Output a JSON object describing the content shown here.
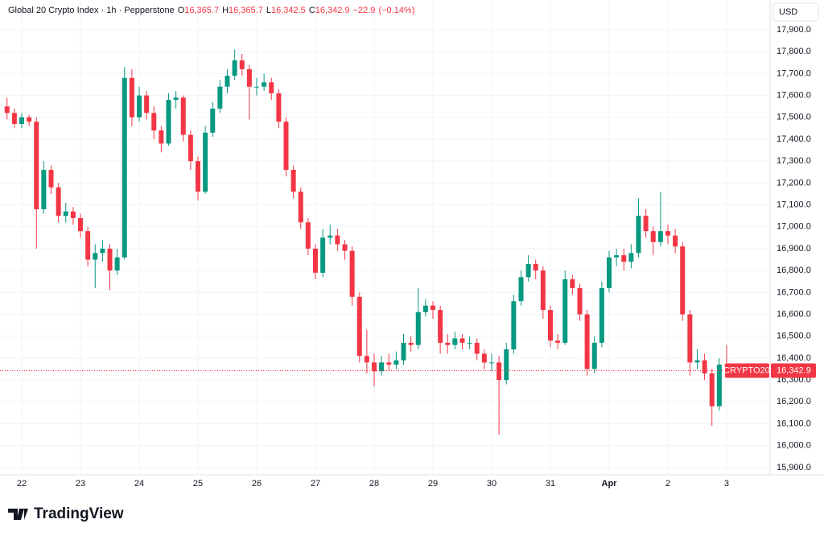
{
  "chart_data": {
    "type": "candlestick",
    "title": "Global 20 Crypto Index · 1h · Pepperstone",
    "last_bar": [
      {
        "key": "O",
        "value": 16365.7,
        "label": "16,365.7"
      },
      {
        "key": "H",
        "value": 16365.7,
        "label": "16,365.7"
      },
      {
        "key": "L",
        "value": 16342.5,
        "label": "16,342.5"
      },
      {
        "key": "C",
        "value": 16342.9,
        "label": "16,342.9"
      }
    ],
    "change": {
      "value": -22.9,
      "label": "−22.9"
    },
    "change_pct": {
      "value": -0.14,
      "label": "(−0.14%)"
    },
    "currency": "USD",
    "symbol": "CRYPTO20",
    "last_price": {
      "value": 16342.9,
      "label": "16,342.9"
    },
    "brand": "TradingView",
    "up_color": "#089981",
    "down_color": "#f23645",
    "grid": true,
    "xlim": [
      -0.37,
      12.74
    ],
    "ylim": [
      15874,
      18036
    ],
    "xticks": [
      {
        "value": 0,
        "label": "22"
      },
      {
        "value": 1,
        "label": "23"
      },
      {
        "value": 2,
        "label": "24"
      },
      {
        "value": 3,
        "label": "25"
      },
      {
        "value": 4,
        "label": "26"
      },
      {
        "value": 5,
        "label": "27"
      },
      {
        "value": 6,
        "label": "28"
      },
      {
        "value": 7,
        "label": "29"
      },
      {
        "value": 8,
        "label": "30"
      },
      {
        "value": 9,
        "label": "31"
      },
      {
        "value": 10,
        "label": "Apr"
      },
      {
        "value": 11,
        "label": "2"
      },
      {
        "value": 12,
        "label": "3"
      }
    ],
    "yticks": [
      {
        "value": 15900,
        "label": "15,900.0"
      },
      {
        "value": 16000,
        "label": "16,000.0"
      },
      {
        "value": 16100,
        "label": "16,100.0"
      },
      {
        "value": 16200,
        "label": "16,200.0"
      },
      {
        "value": 16300,
        "label": "16,300.0"
      },
      {
        "value": 16400,
        "label": "16,400.0"
      },
      {
        "value": 16500,
        "label": "16,500.0"
      },
      {
        "value": 16600,
        "label": "16,600.0"
      },
      {
        "value": 16700,
        "label": "16,700.0"
      },
      {
        "value": 16800,
        "label": "16,800.0"
      },
      {
        "value": 16900,
        "label": "16,900.0"
      },
      {
        "value": 17000,
        "label": "17,000.0"
      },
      {
        "value": 17100,
        "label": "17,100.0"
      },
      {
        "value": 17200,
        "label": "17,200.0"
      },
      {
        "value": 17300,
        "label": "17,300.0"
      },
      {
        "value": 17400,
        "label": "17,400.0"
      },
      {
        "value": 17500,
        "label": "17,500.0"
      },
      {
        "value": 17600,
        "label": "17,600.0"
      },
      {
        "value": 17700,
        "label": "17,700.0"
      },
      {
        "value": 17800,
        "label": "17,800.0"
      },
      {
        "value": 17900,
        "label": "17,900.0"
      }
    ],
    "x": [
      -0.25,
      -0.125,
      0,
      0.125,
      0.25,
      0.375,
      0.5,
      0.625,
      0.75,
      0.875,
      1,
      1.125,
      1.25,
      1.375,
      1.5,
      1.625,
      1.75,
      1.875,
      2,
      2.125,
      2.25,
      2.375,
      2.5,
      2.625,
      2.75,
      2.875,
      3,
      3.125,
      3.25,
      3.375,
      3.5,
      3.625,
      3.75,
      3.875,
      4,
      4.125,
      4.25,
      4.375,
      4.5,
      4.625,
      4.75,
      4.875,
      5,
      5.125,
      5.25,
      5.375,
      5.5,
      5.625,
      5.75,
      5.875,
      6,
      6.125,
      6.25,
      6.375,
      6.5,
      6.625,
      6.75,
      6.875,
      7,
      7.125,
      7.25,
      7.375,
      7.5,
      7.625,
      7.75,
      7.875,
      8,
      8.125,
      8.25,
      8.375,
      8.5,
      8.625,
      8.75,
      8.875,
      9,
      9.125,
      9.25,
      9.375,
      9.5,
      9.625,
      9.75,
      9.875,
      10,
      10.125,
      10.25,
      10.375,
      10.5,
      10.625,
      10.75,
      10.875,
      11,
      11.125,
      11.25,
      11.375,
      11.5,
      11.625,
      11.75,
      11.875,
      12,
      12.125
    ],
    "open": [
      17550,
      17520,
      17470,
      17500,
      17480,
      17080,
      17260,
      17180,
      17050,
      17070,
      17040,
      16980,
      16850,
      16880,
      16900,
      16800,
      16860,
      17680,
      17500,
      17600,
      17520,
      17440,
      17380,
      17580,
      17590,
      17420,
      17300,
      17160,
      17430,
      17540,
      17640,
      17690,
      17760,
      17720,
      17640,
      17640,
      17660,
      17610,
      17480,
      17260,
      17160,
      17020,
      16900,
      16790,
      16950,
      16960,
      16920,
      16890,
      16680,
      16410,
      16380,
      16340,
      16380,
      16370,
      16390,
      16470,
      16460,
      16610,
      16640,
      16620,
      16470,
      16460,
      16490,
      16470,
      16470,
      16420,
      16380,
      16380,
      16300,
      16440,
      16660,
      16770,
      16830,
      16800,
      16620,
      16480,
      16470,
      16760,
      16720,
      16600,
      16350,
      16470,
      16720,
      16860,
      16870,
      16840,
      16880,
      17050,
      16980,
      16930,
      16980,
      16960,
      16910,
      16600,
      16380,
      16390,
      16330,
      16180,
      16370,
      16365.7
    ],
    "high": [
      17590,
      17540,
      17520,
      17510,
      17500,
      17300,
      17280,
      17200,
      17110,
      17090,
      17060,
      17000,
      16920,
      16940,
      16920,
      16900,
      17730,
      17720,
      17640,
      17620,
      17550,
      17460,
      17610,
      17620,
      17600,
      17440,
      17320,
      17460,
      17570,
      17670,
      17720,
      17810,
      17790,
      17740,
      17680,
      17700,
      17680,
      17630,
      17500,
      17280,
      17180,
      17040,
      16920,
      16990,
      17010,
      16990,
      16940,
      16910,
      16700,
      16530,
      16420,
      16410,
      16420,
      16430,
      16510,
      16500,
      16720,
      16670,
      16660,
      16640,
      16510,
      16520,
      16510,
      16500,
      16490,
      16440,
      16420,
      16410,
      16470,
      16690,
      16800,
      16870,
      16850,
      16820,
      16640,
      16510,
      16800,
      16780,
      16740,
      16620,
      16500,
      16750,
      16890,
      16900,
      16900,
      16920,
      17130,
      17080,
      17000,
      17160,
      17010,
      16990,
      16930,
      16620,
      16440,
      16420,
      16350,
      16400,
      16460,
      16365.7
    ],
    "low": [
      17490,
      17450,
      17450,
      17460,
      16900,
      17060,
      17150,
      17020,
      17020,
      17010,
      16950,
      16820,
      16720,
      16840,
      16710,
      16780,
      16850,
      17460,
      17480,
      17490,
      17400,
      17340,
      17370,
      17540,
      17390,
      17260,
      17120,
      17150,
      17410,
      17520,
      17610,
      17670,
      17690,
      17490,
      17600,
      17620,
      17580,
      17450,
      17230,
      17130,
      16990,
      16870,
      16760,
      16770,
      16920,
      16890,
      16850,
      16640,
      16380,
      16330,
      16270,
      16320,
      16340,
      16350,
      16370,
      16430,
      16440,
      16590,
      16580,
      16420,
      16420,
      16440,
      16440,
      16440,
      16390,
      16350,
      16340,
      16050,
      16280,
      16420,
      16640,
      16750,
      16760,
      16580,
      16450,
      16440,
      16460,
      16690,
      16570,
      16320,
      16330,
      16450,
      16700,
      16820,
      16800,
      16810,
      16860,
      16950,
      16870,
      16910,
      16920,
      16880,
      16570,
      16320,
      16350,
      16300,
      16090,
      16160,
      16340,
      16342.5
    ],
    "close": [
      17520,
      17470,
      17500,
      17480,
      17080,
      17260,
      17180,
      17050,
      17070,
      17040,
      16980,
      16850,
      16880,
      16900,
      16800,
      16860,
      17680,
      17500,
      17600,
      17520,
      17440,
      17380,
      17580,
      17590,
      17420,
      17300,
      17160,
      17430,
      17540,
      17640,
      17690,
      17760,
      17720,
      17640,
      17640,
      17660,
      17610,
      17480,
      17260,
      17160,
      17020,
      16900,
      16790,
      16950,
      16960,
      16920,
      16890,
      16680,
      16410,
      16380,
      16340,
      16380,
      16370,
      16390,
      16470,
      16460,
      16610,
      16640,
      16620,
      16470,
      16460,
      16490,
      16470,
      16470,
      16420,
      16380,
      16380,
      16300,
      16440,
      16660,
      16770,
      16830,
      16800,
      16620,
      16480,
      16470,
      16760,
      16720,
      16600,
      16350,
      16470,
      16720,
      16860,
      16870,
      16840,
      16880,
      17050,
      16980,
      16930,
      16980,
      16960,
      16910,
      16600,
      16380,
      16390,
      16330,
      16180,
      16370,
      16365.7,
      16342.9
    ]
  }
}
